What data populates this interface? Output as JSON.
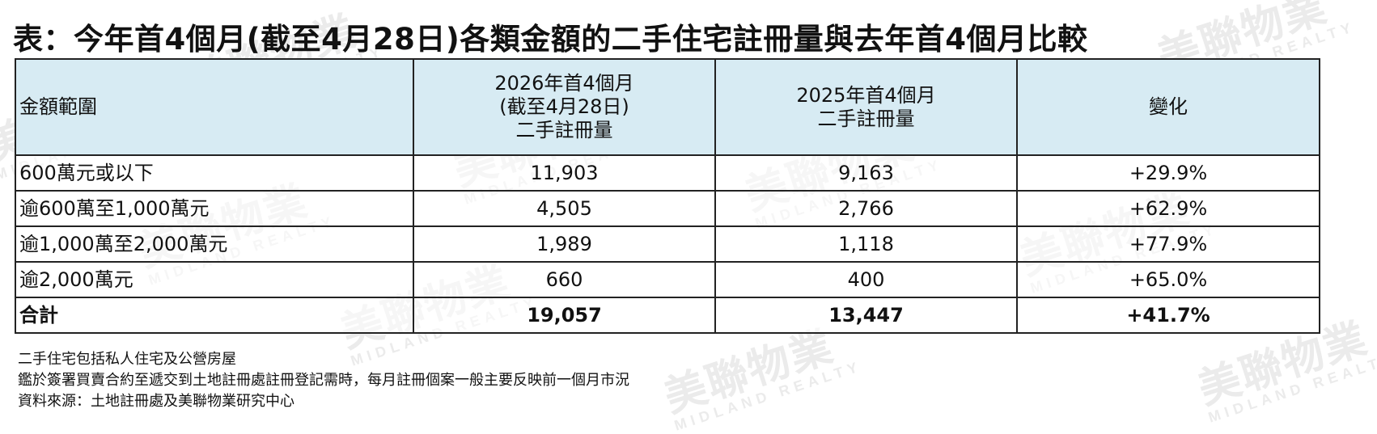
{
  "title": "表：今年首4個月(截至4月28日)各類金額的二手住宅註冊量與去年首4個月比較",
  "table": {
    "headers": [
      {
        "lines": [
          "金額範圍"
        ]
      },
      {
        "lines": [
          "2026年首4個月",
          "(截至4月28日)",
          "二手註冊量"
        ]
      },
      {
        "lines": [
          "2025年首4個月",
          "二手註冊量"
        ]
      },
      {
        "lines": [
          "變化"
        ]
      }
    ],
    "rows": [
      {
        "range": "600萬元或以下",
        "y2026": "11,903",
        "y2025": "9,163",
        "change": "+29.9%"
      },
      {
        "range": "逾600萬至1,000萬元",
        "y2026": "4,505",
        "y2025": "2,766",
        "change": "+62.9%"
      },
      {
        "range": "逾1,000萬至2,000萬元",
        "y2026": "1,989",
        "y2025": "1,118",
        "change": "+77.9%"
      },
      {
        "range": "逾2,000萬元",
        "y2026": "660",
        "y2025": "400",
        "change": "+65.0%"
      }
    ],
    "total": {
      "range": "合計",
      "y2026": "19,057",
      "y2025": "13,447",
      "change": "+41.7%"
    }
  },
  "notes": [
    "二手住宅包括私人住宅及公營房屋",
    "鑑於簽署買賣合約至遞交到土地註冊處註冊登記需時，每月註冊個案一般主要反映前一個月市況",
    "資料來源：土地註冊處及美聯物業研究中心"
  ],
  "watermark": {
    "brand": "美聯物業",
    "brand_en": "MIDLAND REALTY"
  }
}
